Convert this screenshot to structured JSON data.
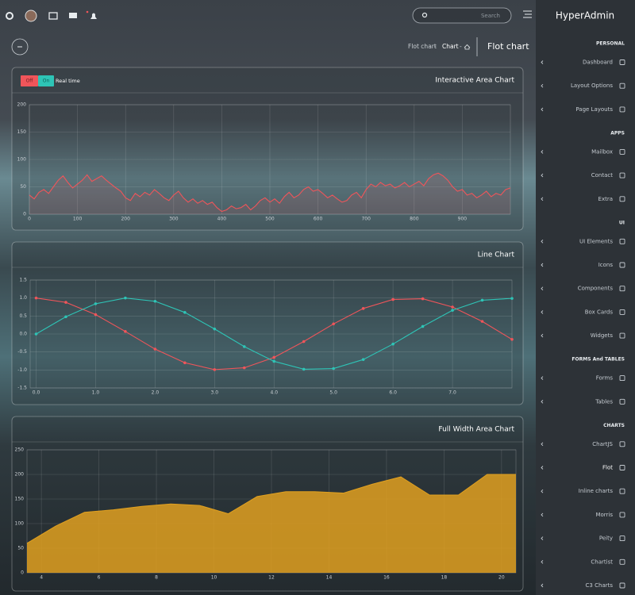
{
  "topbar": {
    "search_placeholder": "Search"
  },
  "breadcrumb": {
    "items": [
      "Flot chart",
      "Chart"
    ],
    "separator": "-",
    "title": "Flot chart"
  },
  "realtime_toggle": {
    "off": "Off",
    "on": "On",
    "label": "Real time"
  },
  "sidebar": {
    "brand": "HyperAdmin",
    "active": "Flot",
    "sections": [
      {
        "heading": "PERSONAL",
        "items": [
          "Dashboard",
          "Layout Options",
          "Page Layouts"
        ]
      },
      {
        "heading": "APPS",
        "items": [
          "Mailbox",
          "Contact",
          "Extra"
        ]
      },
      {
        "heading": "UI",
        "items": [
          "UI Elements",
          "Icons",
          "Components",
          "Box Cards",
          "Widgets"
        ]
      },
      {
        "heading": "FORMS And TABLES",
        "items": [
          "Forms",
          "Tables"
        ]
      },
      {
        "heading": "CHARTS",
        "items": [
          "ChartJS",
          "Flot",
          "Inline charts",
          "Morris",
          "Peity",
          "Chartist",
          "C3 Charts"
        ]
      }
    ]
  },
  "chart_data": [
    {
      "type": "area",
      "title": "Interactive Area Chart",
      "grid": true,
      "xlim": [
        0,
        1000
      ],
      "xticks": [
        0,
        100,
        200,
        300,
        400,
        500,
        600,
        700,
        800,
        900
      ],
      "ylim": [
        0,
        200
      ],
      "yticks": [
        0,
        50,
        100,
        150,
        200
      ],
      "x": [
        0,
        10,
        20,
        30,
        40,
        50,
        60,
        70,
        80,
        90,
        100,
        110,
        120,
        130,
        140,
        150,
        160,
        170,
        180,
        190,
        200,
        210,
        220,
        230,
        240,
        250,
        260,
        270,
        280,
        290,
        300,
        310,
        320,
        330,
        340,
        350,
        360,
        370,
        380,
        390,
        400,
        410,
        420,
        430,
        440,
        450,
        460,
        470,
        480,
        490,
        500,
        510,
        520,
        530,
        540,
        550,
        560,
        570,
        580,
        590,
        600,
        610,
        620,
        630,
        640,
        650,
        660,
        670,
        680,
        690,
        700,
        710,
        720,
        730,
        740,
        750,
        760,
        770,
        780,
        790,
        800,
        810,
        820,
        830,
        840,
        850,
        860,
        870,
        880,
        890,
        900,
        910,
        920,
        930,
        940,
        950,
        960,
        970,
        980,
        990,
        1000
      ],
      "series": [
        {
          "color": "#f0555a",
          "values": [
            35,
            28,
            40,
            45,
            38,
            50,
            62,
            70,
            58,
            48,
            55,
            62,
            72,
            60,
            65,
            70,
            62,
            55,
            48,
            42,
            30,
            25,
            38,
            32,
            40,
            35,
            45,
            38,
            30,
            25,
            35,
            42,
            30,
            22,
            28,
            20,
            25,
            18,
            22,
            12,
            5,
            8,
            15,
            10,
            12,
            18,
            8,
            15,
            25,
            30,
            22,
            28,
            20,
            32,
            40,
            30,
            35,
            45,
            50,
            42,
            45,
            38,
            30,
            35,
            28,
            22,
            25,
            35,
            40,
            30,
            45,
            55,
            50,
            58,
            52,
            55,
            48,
            52,
            58,
            50,
            55,
            60,
            52,
            65,
            72,
            75,
            70,
            62,
            50,
            42,
            45,
            35,
            38,
            30,
            35,
            42,
            32,
            38,
            35,
            45,
            48
          ]
        }
      ]
    },
    {
      "type": "line",
      "title": "Line Chart",
      "grid": true,
      "xlim": [
        -0.1,
        8.0
      ],
      "xticks": [
        {
          "value": 0,
          "label": "0.0"
        },
        {
          "value": 1,
          "label": "1.0"
        },
        {
          "value": 2,
          "label": "2.0"
        },
        {
          "value": 3,
          "label": "3.0"
        },
        {
          "value": 4,
          "label": "4.0"
        },
        {
          "value": 5,
          "label": "5.0"
        },
        {
          "value": 6,
          "label": "6.0"
        },
        {
          "value": 7,
          "label": "7.0"
        }
      ],
      "ylim": [
        -1.5,
        1.5
      ],
      "yticks": [
        1.5,
        {
          "value": 1,
          "label": "1.0"
        },
        0.5,
        {
          "value": 0,
          "label": "0.0"
        },
        -0.5,
        {
          "value": -1,
          "label": "-1.0"
        },
        -1.5
      ],
      "x": [
        0,
        0.5,
        1,
        1.5,
        2,
        2.5,
        3,
        3.5,
        4,
        4.5,
        5,
        5.5,
        6,
        6.5,
        7,
        7.5,
        8
      ],
      "series": [
        {
          "color": "#f0555a",
          "values": [
            1,
            0.88,
            0.54,
            0.07,
            -0.42,
            -0.8,
            -0.99,
            -0.94,
            -0.65,
            -0.21,
            0.28,
            0.71,
            0.96,
            0.98,
            0.75,
            0.35,
            -0.15
          ]
        },
        {
          "color": "#2ec4b6",
          "values": [
            0,
            0.48,
            0.84,
            1,
            0.91,
            0.6,
            0.14,
            -0.35,
            -0.76,
            -0.98,
            -0.96,
            -0.71,
            -0.28,
            0.21,
            0.66,
            0.94,
            0.99
          ]
        }
      ]
    },
    {
      "type": "area",
      "title": "Full Width Area Chart",
      "grid": true,
      "xlim": [
        3.5,
        20.5
      ],
      "xticks": [
        4,
        6,
        8,
        10,
        12,
        14,
        16,
        18,
        20
      ],
      "ylim": [
        0,
        250
      ],
      "yticks": [
        0,
        50,
        100,
        150,
        200,
        250
      ],
      "x": [
        3.5,
        4.5,
        5.5,
        6.5,
        7.5,
        8.5,
        9.5,
        10.5,
        11.5,
        12.5,
        13.5,
        14.5,
        15.5,
        16.5,
        17.5,
        18.5,
        19.5,
        20.5
      ],
      "series": [
        {
          "color": "#e0a020",
          "values": [
            60,
            95,
            123,
            128,
            135,
            140,
            137,
            120,
            155,
            165,
            165,
            162,
            180,
            195,
            158,
            158,
            200,
            200
          ]
        }
      ]
    }
  ]
}
